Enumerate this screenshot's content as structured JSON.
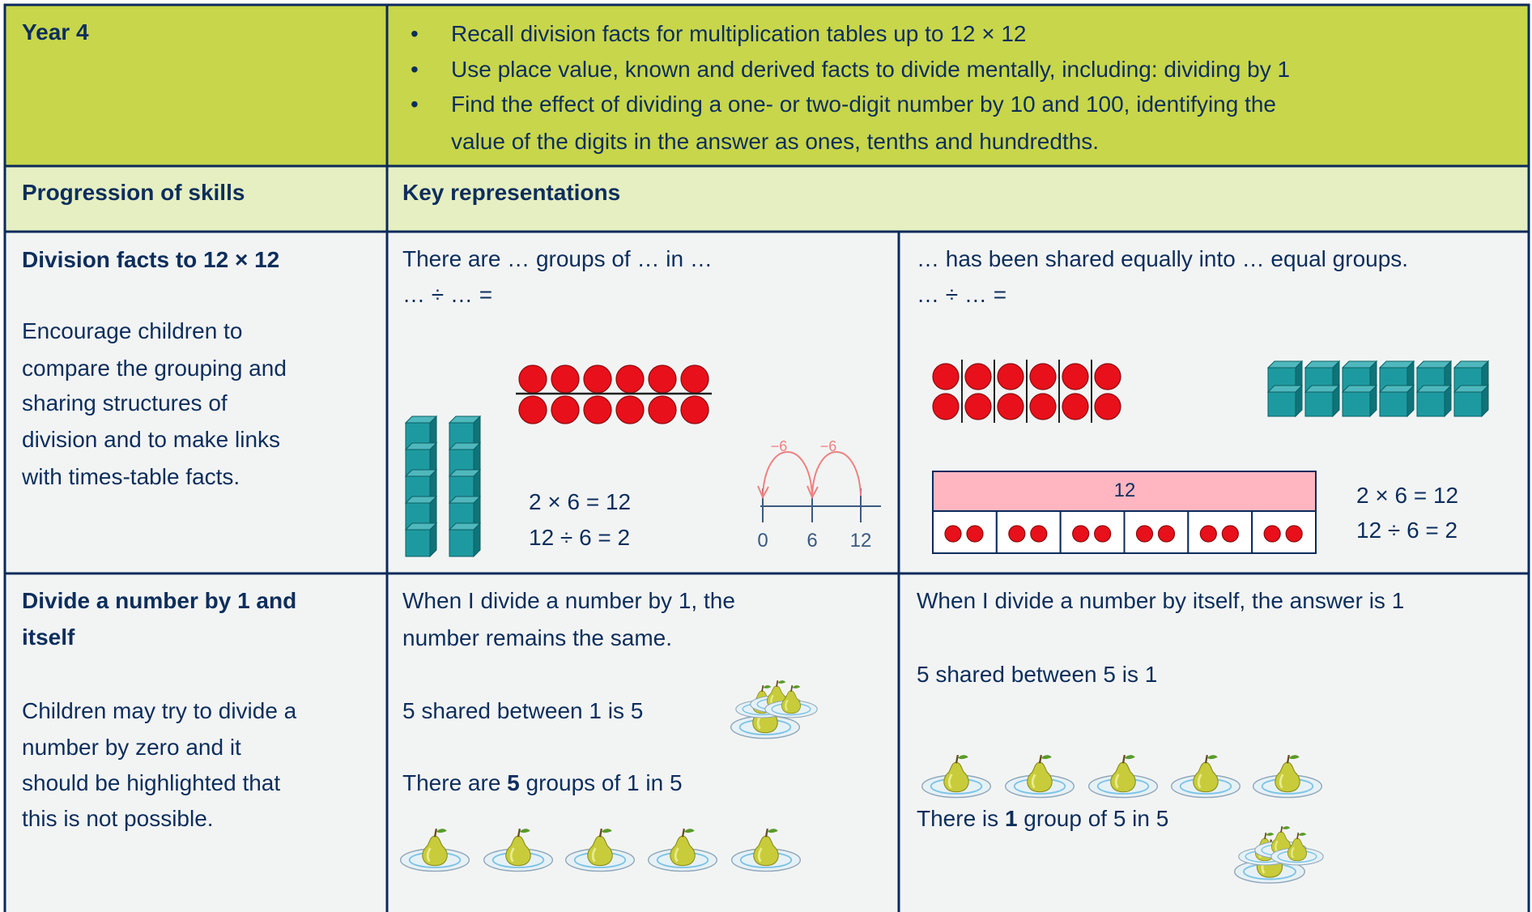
{
  "header": {
    "year": "Year 4",
    "objectives": [
      "Recall division facts for multiplication tables up to 12 × 12",
      "Use place value, known and derived facts to divide mentally, including: dividing by 1",
      "Find the effect of dividing a one- or two-digit number by 10 and 100, identifying the",
      "value of the digits in the answer as ones, tenths and hundredths."
    ]
  },
  "columns": {
    "skills": "Progression of skills",
    "representations": "Key representations"
  },
  "rows": [
    {
      "skill_title": [
        "Division facts to 12 × 12"
      ],
      "skill_text": [
        "Encourage children to",
        "compare the grouping and",
        "sharing structures of",
        "division and to make links",
        "with times-table facts."
      ],
      "left": {
        "prompt": [
          "There are … groups of … in …",
          "… ÷ … ="
        ],
        "equations": [
          "2 × 6 = 12",
          "12 ÷ 6 = 2"
        ],
        "number_line": {
          "jumps": [
            "−6",
            "−6"
          ],
          "labels": [
            "0",
            "6",
            "12"
          ]
        }
      },
      "right": {
        "prompt": [
          "… has been shared equally into … equal groups.",
          "… ÷ … ="
        ],
        "bar_total": "12",
        "equations": [
          "2 × 6 = 12",
          "12 ÷ 6 = 2"
        ]
      }
    },
    {
      "skill_title": [
        "Divide a number by 1 and",
        "itself"
      ],
      "skill_text": [
        "Children may try to divide a",
        "number by zero and it",
        "should be highlighted that",
        "this is not possible."
      ],
      "left": {
        "statement": [
          "When I divide a number by  1, the",
          "number remains the same."
        ],
        "sharing": "5 shared between 1 is 5",
        "grouping": [
          "There are ",
          "5",
          " groups of 1 in 5"
        ]
      },
      "right": {
        "statement": [
          "When I divide a number by itself, the answer is 1"
        ],
        "sharing": "5 shared between 5 is 1",
        "grouping": [
          "There is ",
          "1",
          " group of 5 in 5"
        ]
      }
    }
  ]
}
